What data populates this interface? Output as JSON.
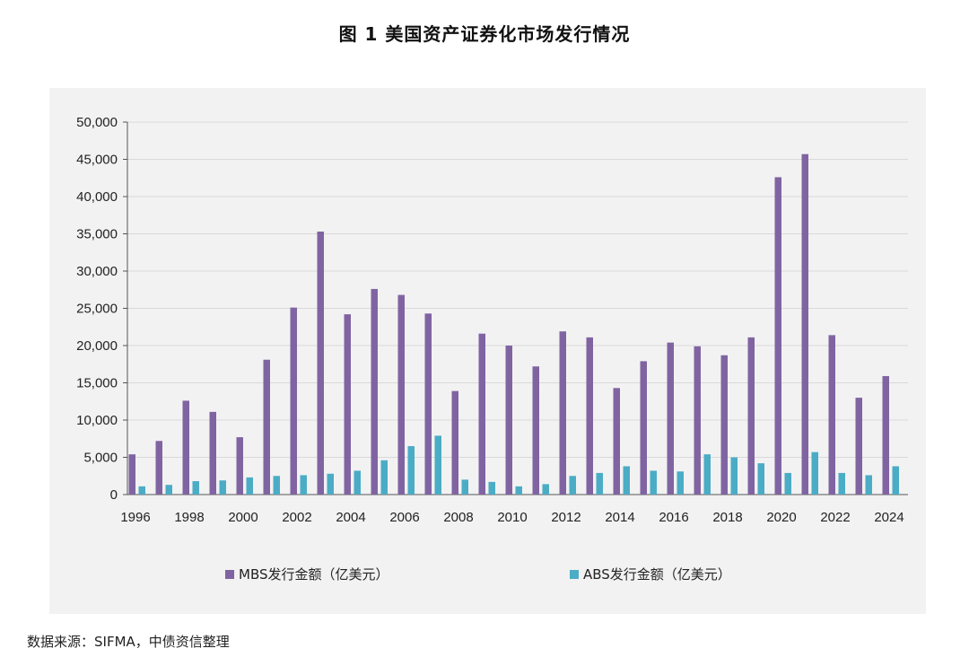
{
  "title": "图 1 美国资产证券化市场发行情况",
  "source": "数据来源：SIFMA，中债资信整理",
  "colors": {
    "mbs": "#8064a2",
    "abs": "#4bacc6",
    "panel": "#f2f2f2",
    "grid": "#d9d9d9"
  },
  "chart_data": {
    "type": "bar",
    "title": "图 1 美国资产证券化市场发行情况",
    "xlabel": "",
    "ylabel": "",
    "ylim": [
      0,
      50000
    ],
    "yticks": [
      "0",
      "5,000",
      "10,000",
      "15,000",
      "20,000",
      "25,000",
      "30,000",
      "35,000",
      "40,000",
      "45,000",
      "50,000"
    ],
    "xtick_labels": [
      "1996",
      "1998",
      "2000",
      "2002",
      "2004",
      "2006",
      "2008",
      "2010",
      "2012",
      "2014",
      "2016",
      "2018",
      "2020",
      "2022",
      "2024"
    ],
    "categories": [
      "1996",
      "1997",
      "1998",
      "1999",
      "2000",
      "2001",
      "2002",
      "2003",
      "2004",
      "2005",
      "2006",
      "2007",
      "2008",
      "2009",
      "2010",
      "2011",
      "2012",
      "2013",
      "2014",
      "2015",
      "2016",
      "2017",
      "2018",
      "2019",
      "2020",
      "2021",
      "2022",
      "2023",
      "2024"
    ],
    "series": [
      {
        "name": "MBS发行金额（亿美元）",
        "values": [
          5400,
          7200,
          12600,
          11100,
          7700,
          18100,
          25100,
          35300,
          24200,
          27600,
          26800,
          24300,
          13900,
          21600,
          20000,
          17200,
          21900,
          21100,
          14300,
          17900,
          20400,
          19900,
          18700,
          21100,
          42600,
          45700,
          21400,
          13000,
          15900
        ]
      },
      {
        "name": "ABS发行金额（亿美元）",
        "values": [
          1100,
          1300,
          1800,
          1900,
          2300,
          2500,
          2600,
          2800,
          3200,
          4600,
          6500,
          7900,
          2000,
          1700,
          1100,
          1400,
          2500,
          2900,
          3800,
          3200,
          3100,
          5400,
          5000,
          4200,
          2900,
          5700,
          2900,
          2600,
          3800
        ]
      }
    ],
    "grid": true,
    "legend_position": "bottom"
  }
}
